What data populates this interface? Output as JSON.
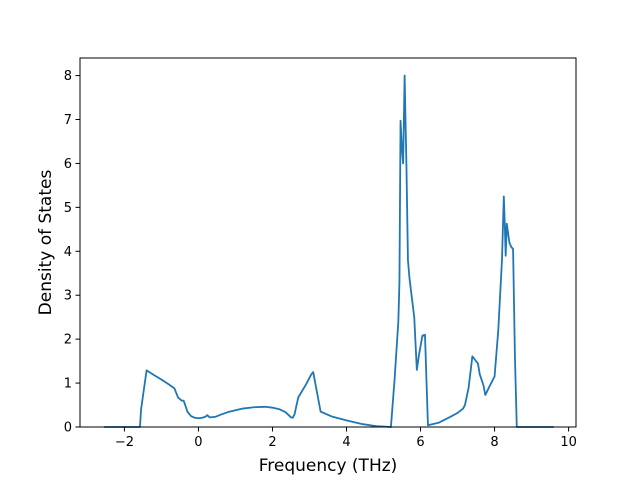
{
  "chart_data": {
    "type": "line",
    "title": "",
    "xlabel": "Frequency (THz)",
    "ylabel": "Density of States",
    "xlim": [
      -3.2,
      10.2
    ],
    "ylim": [
      0,
      8.4
    ],
    "x_ticks": [
      -2,
      0,
      2,
      4,
      6,
      8,
      10
    ],
    "x_tick_labels": [
      "−2",
      "0",
      "2",
      "4",
      "6",
      "8",
      "10"
    ],
    "y_ticks": [
      0,
      1,
      2,
      3,
      4,
      5,
      6,
      7,
      8
    ],
    "y_tick_labels": [
      "0",
      "1",
      "2",
      "3",
      "4",
      "5",
      "6",
      "7",
      "8"
    ],
    "grid": false,
    "legend": "none",
    "series": [
      {
        "color": "#1f77b4",
        "x": [
          -2.55,
          -2.0,
          -1.58,
          -1.55,
          -1.45,
          -1.4,
          -1.2,
          -1.0,
          -0.8,
          -0.65,
          -0.55,
          -0.45,
          -0.4,
          -0.35,
          -0.3,
          -0.2,
          -0.1,
          0.0,
          0.1,
          0.18,
          0.24,
          0.3,
          0.45,
          0.6,
          0.8,
          1.0,
          1.2,
          1.5,
          1.8,
          2.0,
          2.2,
          2.35,
          2.45,
          2.5,
          2.55,
          2.6,
          2.65,
          2.7,
          2.8,
          2.9,
          3.0,
          3.05,
          3.1,
          3.2,
          3.3,
          3.6,
          4.0,
          4.4,
          4.8,
          5.2,
          5.3,
          5.4,
          5.43,
          5.46,
          5.5,
          5.53,
          5.57,
          5.62,
          5.66,
          5.7,
          5.75,
          5.83,
          5.9,
          5.95,
          6.05,
          6.12,
          6.2,
          6.5,
          6.8,
          7.0,
          7.15,
          7.2,
          7.3,
          7.4,
          7.5,
          7.55,
          7.6,
          7.7,
          7.75,
          7.85,
          8.0,
          8.1,
          8.2,
          8.25,
          8.28,
          8.3,
          8.33,
          8.4,
          8.45,
          8.5,
          8.55,
          8.6,
          9.0,
          9.3,
          9.6
        ],
        "y": [
          0,
          0,
          0,
          0.4,
          1.0,
          1.29,
          1.18,
          1.08,
          0.97,
          0.88,
          0.67,
          0.6,
          0.6,
          0.48,
          0.35,
          0.25,
          0.21,
          0.2,
          0.21,
          0.23,
          0.27,
          0.22,
          0.23,
          0.28,
          0.34,
          0.38,
          0.42,
          0.45,
          0.46,
          0.44,
          0.4,
          0.34,
          0.26,
          0.22,
          0.21,
          0.3,
          0.5,
          0.68,
          0.82,
          0.96,
          1.12,
          1.2,
          1.25,
          0.8,
          0.35,
          0.24,
          0.15,
          0.07,
          0.02,
          0.0,
          1.1,
          2.4,
          3.3,
          6.97,
          6.3,
          6.0,
          8.0,
          5.9,
          3.8,
          3.4,
          3.05,
          2.5,
          1.3,
          1.6,
          2.08,
          2.1,
          0.04,
          0.1,
          0.23,
          0.32,
          0.42,
          0.5,
          0.9,
          1.61,
          1.5,
          1.45,
          1.2,
          0.95,
          0.73,
          0.9,
          1.15,
          2.2,
          3.8,
          5.25,
          4.5,
          3.9,
          4.63,
          4.2,
          4.1,
          4.05,
          1.6,
          0.0,
          0.0,
          0.0,
          0.0
        ]
      }
    ]
  }
}
